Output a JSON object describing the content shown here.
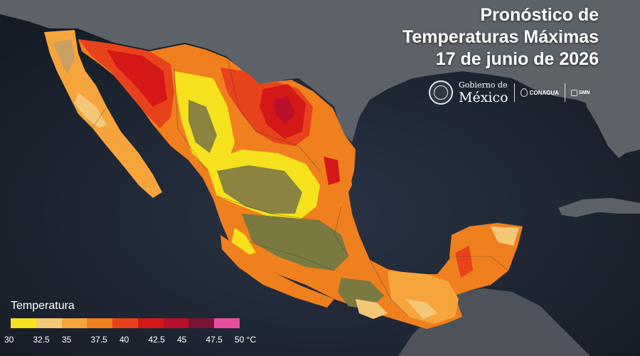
{
  "header": {
    "title_line1": "Pronóstico de",
    "title_line2": "Temperaturas Máximas",
    "title_line3": "17 de junio de 2026"
  },
  "logos": {
    "gob_top": "Gobierno de",
    "gob_main": "México",
    "conagua": "CONAGUA",
    "smn": "SMN"
  },
  "legend": {
    "title": "Temperatura",
    "ticks": [
      "30",
      "32.5",
      "35",
      "37.5",
      "40",
      "42.5",
      "45",
      "47.5",
      "50 °C"
    ],
    "colors": [
      "#f5e11c",
      "#f5c878",
      "#f5a53c",
      "#f07f1e",
      "#e8421c",
      "#d41818",
      "#b8102c",
      "#7a1434",
      "#e6509a"
    ]
  },
  "map": {
    "ocean_color": "#1e2735",
    "land_foreign_color": "#5b6068",
    "highland_color": "#7a7a40"
  }
}
